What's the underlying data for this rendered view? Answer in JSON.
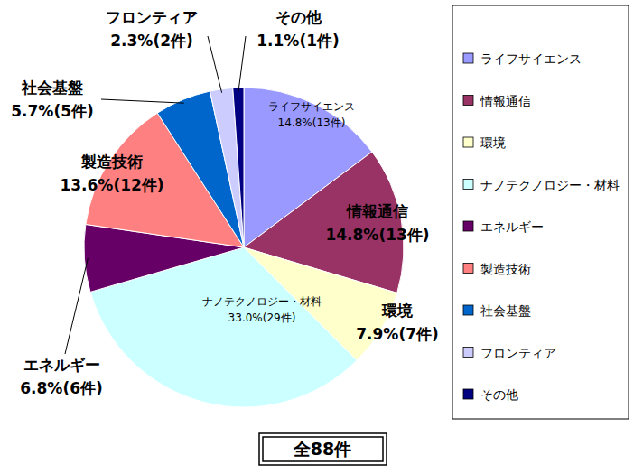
{
  "chart_data": {
    "type": "pie",
    "categories": [
      "ライフサイエンス",
      "情報通信",
      "環境",
      "ナノテクノロジー・材料",
      "エネルギー",
      "製造技術",
      "社会基盤",
      "フロンティア",
      "その他"
    ],
    "values": [
      14.8,
      14.8,
      7.9,
      33.0,
      6.8,
      13.6,
      5.7,
      2.3,
      1.1
    ],
    "value_labels": [
      "14.8%(13件)",
      "14.8%(13件)",
      "7.9%(7件)",
      "33.0%(29件)",
      "6.8%(6件)",
      "13.6%(12件)",
      "5.7%(5件)",
      "2.3%(2件)",
      "1.1%(1件)"
    ],
    "colors": [
      "#9999ff",
      "#993366",
      "#ffffcc",
      "#ccffff",
      "#660066",
      "#ff8080",
      "#0066cc",
      "#ccccff",
      "#000080"
    ],
    "data_labels": true,
    "legend": "right",
    "annotations": [
      "全88件"
    ]
  }
}
